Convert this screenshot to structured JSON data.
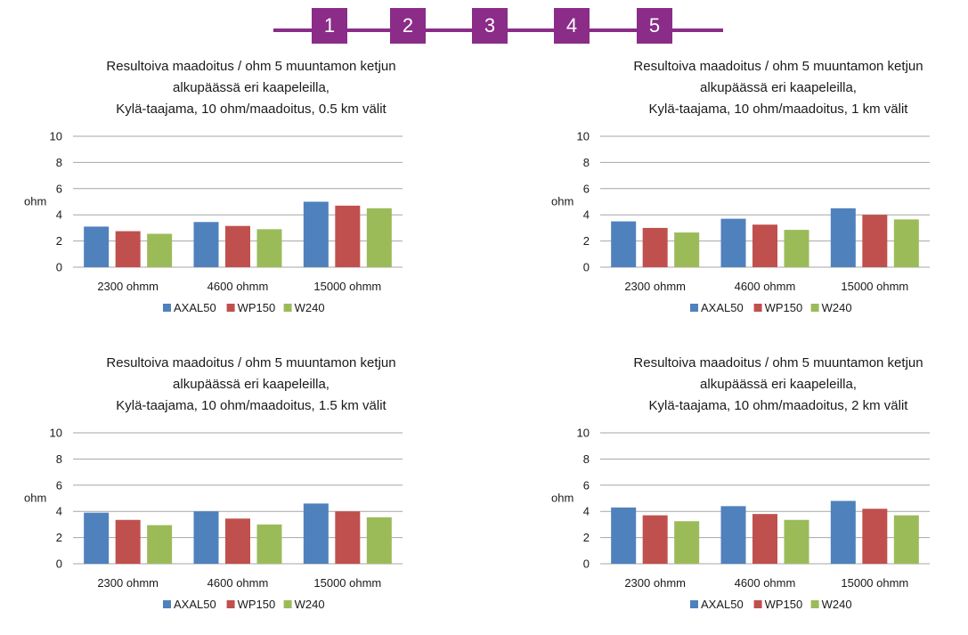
{
  "steps": [
    "1",
    "2",
    "3",
    "4",
    "5"
  ],
  "colors": {
    "accent": "#8a2c88",
    "AXAL50": "#4f81bd",
    "WP150": "#c0504d",
    "W240": "#9bbb59",
    "grid": "#a6a6a6"
  },
  "chart_data": [
    {
      "type": "bar",
      "title_lines": [
        "Resultoiva maadoitus / ohm  5 muuntamon ketjun",
        "alkupäässä eri kaapeleilla,",
        "Kylä-taajama, 10 ohm/maadoitus, 0.5 km välit"
      ],
      "ylabel": "ohm",
      "ylim": [
        0,
        10
      ],
      "yticks": [
        "0",
        "2",
        "4",
        "6",
        "8",
        "10"
      ],
      "categories": [
        "2300 ohmm",
        "4600 ohmm",
        "15000 ohmm"
      ],
      "series": [
        {
          "name": "AXAL50",
          "values": [
            3.1,
            3.45,
            5.0
          ]
        },
        {
          "name": "WP150",
          "values": [
            2.75,
            3.15,
            4.7
          ]
        },
        {
          "name": "W240",
          "values": [
            2.55,
            2.9,
            4.5
          ]
        }
      ],
      "legend": "bottom",
      "grid": true
    },
    {
      "type": "bar",
      "title_lines": [
        "Resultoiva maadoitus / ohm  5 muuntamon ketjun",
        "alkupäässä eri kaapeleilla,",
        "Kylä-taajama, 10 ohm/maadoitus, 1 km välit"
      ],
      "ylabel": "ohm",
      "ylim": [
        0,
        10
      ],
      "yticks": [
        "0",
        "2",
        "4",
        "6",
        "8",
        "10"
      ],
      "categories": [
        "2300 ohmm",
        "4600 ohmm",
        "15000 ohmm"
      ],
      "series": [
        {
          "name": "AXAL50",
          "values": [
            3.5,
            3.7,
            4.5
          ]
        },
        {
          "name": "WP150",
          "values": [
            3.0,
            3.25,
            4.0
          ]
        },
        {
          "name": "W240",
          "values": [
            2.65,
            2.85,
            3.65
          ]
        }
      ],
      "legend": "bottom",
      "grid": true
    },
    {
      "type": "bar",
      "title_lines": [
        "Resultoiva maadoitus / ohm  5 muuntamon ketjun",
        "alkupäässä eri kaapeleilla,",
        "Kylä-taajama, 10 ohm/maadoitus, 1.5 km välit"
      ],
      "ylabel": "ohm",
      "ylim": [
        0,
        10
      ],
      "yticks": [
        "0",
        "2",
        "4",
        "6",
        "8",
        "10"
      ],
      "categories": [
        "2300 ohmm",
        "4600 ohmm",
        "15000 ohmm"
      ],
      "series": [
        {
          "name": "AXAL50",
          "values": [
            3.9,
            4.0,
            4.6
          ]
        },
        {
          "name": "WP150",
          "values": [
            3.35,
            3.45,
            4.0
          ]
        },
        {
          "name": "W240",
          "values": [
            2.95,
            3.0,
            3.55
          ]
        }
      ],
      "legend": "bottom",
      "grid": true
    },
    {
      "type": "bar",
      "title_lines": [
        "Resultoiva maadoitus / ohm  5 muuntamon ketjun",
        "alkupäässä eri kaapeleilla,",
        "Kylä-taajama, 10 ohm/maadoitus, 2 km välit"
      ],
      "ylabel": "ohm",
      "ylim": [
        0,
        10
      ],
      "yticks": [
        "0",
        "2",
        "4",
        "6",
        "8",
        "10"
      ],
      "categories": [
        "2300 ohmm",
        "4600 ohmm",
        "15000 ohmm"
      ],
      "series": [
        {
          "name": "AXAL50",
          "values": [
            4.3,
            4.4,
            4.8
          ]
        },
        {
          "name": "WP150",
          "values": [
            3.7,
            3.8,
            4.2
          ]
        },
        {
          "name": "W240",
          "values": [
            3.25,
            3.35,
            3.7
          ]
        }
      ],
      "legend": "bottom",
      "grid": true
    }
  ]
}
